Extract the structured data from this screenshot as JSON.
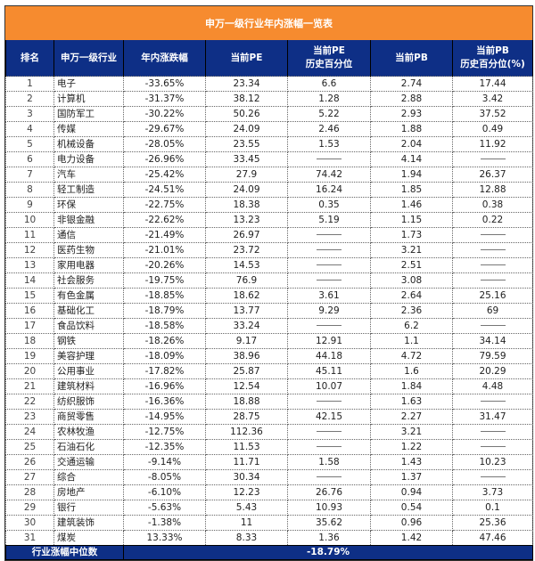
{
  "title": "申万一级行业年内涨幅一览表",
  "headers": [
    "排名",
    "申万一级行业",
    "年内涨跌幅",
    "当前PE",
    "当前PE\n历史百分位",
    "当前PB",
    "当前PB\n历史百分位(%)"
  ],
  "rows": [
    [
      "1",
      "电子",
      "-33.65%",
      "23.34",
      "6.6",
      "2.74",
      "17.44"
    ],
    [
      "2",
      "计算机",
      "-31.37%",
      "38.12",
      "1.28",
      "2.88",
      "3.42"
    ],
    [
      "3",
      "国防军工",
      "-30.22%",
      "50.26",
      "5.22",
      "2.93",
      "37.52"
    ],
    [
      "4",
      "传媒",
      "-29.67%",
      "24.09",
      "2.46",
      "1.88",
      "0.49"
    ],
    [
      "5",
      "机械设备",
      "-28.05%",
      "23.55",
      "1.53",
      "2.04",
      "11.92"
    ],
    [
      "6",
      "电力设备",
      "-26.96%",
      "33.45",
      "—",
      "4.14",
      "—"
    ],
    [
      "7",
      "汽车",
      "-25.42%",
      "27.9",
      "74.42",
      "1.94",
      "26.37"
    ],
    [
      "8",
      "轻工制造",
      "-24.51%",
      "24.09",
      "16.24",
      "1.85",
      "12.88"
    ],
    [
      "9",
      "环保",
      "-22.75%",
      "18.38",
      "0.35",
      "1.46",
      "0.38"
    ],
    [
      "10",
      "非银金融",
      "-22.62%",
      "13.23",
      "5.19",
      "1.15",
      "0.22"
    ],
    [
      "11",
      "通信",
      "-21.49%",
      "26.97",
      "—",
      "1.73",
      "—"
    ],
    [
      "12",
      "医药生物",
      "-21.01%",
      "23.72",
      "—",
      "3.21",
      "—"
    ],
    [
      "13",
      "家用电器",
      "-20.26%",
      "14.53",
      "—",
      "2.51",
      "—"
    ],
    [
      "14",
      "社会服务",
      "-19.75%",
      "76.9",
      "—",
      "3.08",
      "—"
    ],
    [
      "15",
      "有色金属",
      "-18.85%",
      "18.62",
      "3.61",
      "2.64",
      "25.16"
    ],
    [
      "16",
      "基础化工",
      "-18.79%",
      "13.77",
      "9.29",
      "2.36",
      "69"
    ],
    [
      "17",
      "食品饮料",
      "-18.58%",
      "33.24",
      "—",
      "6.2",
      "—"
    ],
    [
      "18",
      "钢铁",
      "-18.26%",
      "9.17",
      "12.91",
      "1.1",
      "34.14"
    ],
    [
      "19",
      "美容护理",
      "-18.09%",
      "38.96",
      "44.18",
      "4.72",
      "79.59"
    ],
    [
      "20",
      "公用事业",
      "-17.82%",
      "25.87",
      "45.11",
      "1.6",
      "20.29"
    ],
    [
      "21",
      "建筑材料",
      "-16.96%",
      "12.54",
      "10.07",
      "1.84",
      "4.48"
    ],
    [
      "22",
      "纺织服饰",
      "-16.36%",
      "18.88",
      "—",
      "1.63",
      "—"
    ],
    [
      "23",
      "商贸零售",
      "-14.95%",
      "28.75",
      "42.15",
      "2.27",
      "31.47"
    ],
    [
      "24",
      "农林牧渔",
      "-12.75%",
      "112.36",
      "—",
      "3.21",
      "—"
    ],
    [
      "25",
      "石油石化",
      "-12.35%",
      "11.53",
      "—",
      "1.22",
      "—"
    ],
    [
      "26",
      "交通运输",
      "-9.14%",
      "11.71",
      "1.58",
      "1.43",
      "10.23"
    ],
    [
      "27",
      "综合",
      "-8.05%",
      "30.34",
      "—",
      "1.37",
      "—"
    ],
    [
      "28",
      "房地产",
      "-6.10%",
      "12.23",
      "26.76",
      "0.94",
      "3.73"
    ],
    [
      "29",
      "银行",
      "-5.63%",
      "5.43",
      "10.93",
      "0.54",
      "0.1"
    ],
    [
      "30",
      "建筑装饰",
      "-1.38%",
      "11",
      "35.62",
      "0.96",
      "25.36"
    ],
    [
      "31",
      "煤炭",
      "13.33%",
      "8.33",
      "1.36",
      "1.42",
      "47.46"
    ]
  ],
  "footer": {
    "label": "行业涨幅中位数",
    "value": "-18.79%"
  },
  "colors": {
    "title_bg": "#F68B2F",
    "header_bg": "#0E2F86"
  }
}
